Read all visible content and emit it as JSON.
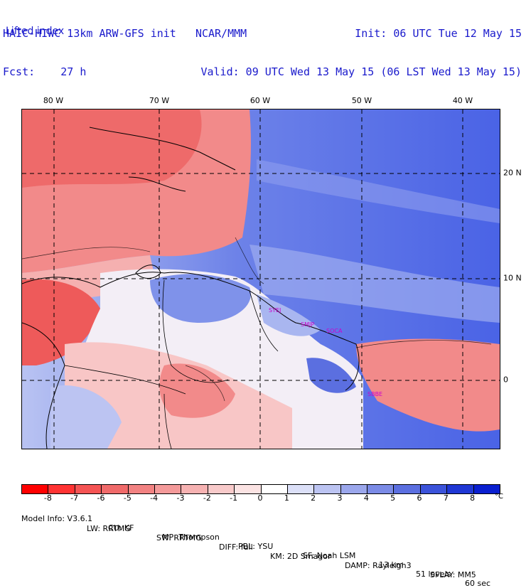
{
  "header": {
    "model": "HAIC-HIWC 13km ARW-GFS init",
    "center": "NCAR/MMM",
    "fcst_label": "Fcst:",
    "fcst_value": "27 h",
    "init": "Init: 06 UTC Tue 12 May 15",
    "valid": "Valid: 09 UTC Wed 13 May 15 (06 LST Wed 13 May 15)",
    "variable": "Lifted index"
  },
  "map": {
    "lon_labels": [
      "80 W",
      "70 W",
      "60 W",
      "50 W",
      "40 W"
    ],
    "lat_labels": [
      "20 N",
      "10 N",
      "0"
    ],
    "stations": [
      "SYEJ",
      "SMJP",
      "SOCA",
      "SBBE"
    ],
    "colors": {
      "ocean_stable": "#4a63e6",
      "ocean_mid": "#8fa0ef",
      "land_unstable": "#f28a8a",
      "strong_unstable": "#ee5a5a",
      "light_pink": "#f8c6c6",
      "near_zero": "#f3eef6"
    }
  },
  "colorbar": {
    "unit": "°C",
    "ticks": [
      "-8",
      "-7",
      "-6",
      "-5",
      "-4",
      "-3",
      "-2",
      "-1",
      "0",
      "1",
      "2",
      "3",
      "4",
      "5",
      "6",
      "7",
      "8"
    ],
    "colors": [
      "#ff0000",
      "#ff3333",
      "#f55454",
      "#f06a6a",
      "#f28282",
      "#f49a9a",
      "#f6b2b2",
      "#f8caca",
      "#fbe3e3",
      "#ffffff",
      "#dce0f8",
      "#bcc4f2",
      "#9ba7ec",
      "#7b8be6",
      "#5b6fe0",
      "#3b53da",
      "#1f37d4",
      "#0a1fd0"
    ]
  },
  "footer": {
    "line1": [
      "Model Info: V3.6.1",
      "CU: KF",
      "MP: Thompson",
      "PBL: YSU",
      "SF: Noah LSM",
      "13 km",
      "51 levels",
      "60 sec"
    ],
    "line2": [
      "LW: RRTMG",
      "SW: RRTMG",
      "DIFF: full",
      "KM: 2D Smagor",
      "DAMP: Rayleigh3",
      "SFLAY: MM5"
    ]
  }
}
